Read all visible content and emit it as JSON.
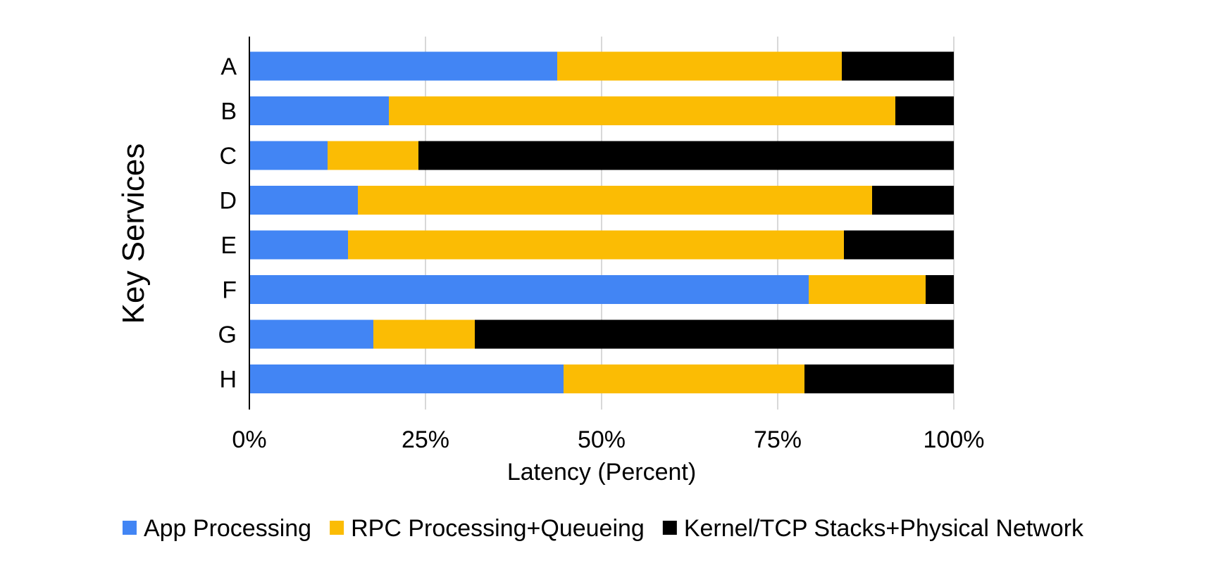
{
  "chart_data": {
    "type": "bar",
    "orientation": "horizontal",
    "stacked": true,
    "categories": [
      "A",
      "B",
      "C",
      "D",
      "E",
      "F",
      "G",
      "H"
    ],
    "series": [
      {
        "name": "App Processing",
        "color": "#4285F4",
        "values": [
          43.7,
          19.8,
          11.1,
          15.4,
          14.0,
          79.4,
          17.6,
          44.6
        ]
      },
      {
        "name": "RPC Processing+Queueing",
        "color": "#FBBC04",
        "values": [
          40.4,
          71.9,
          12.9,
          73.0,
          70.4,
          16.6,
          14.4,
          34.2
        ]
      },
      {
        "name": "Kernel/TCP Stacks+Physical Network",
        "color": "#000000",
        "values": [
          15.9,
          8.3,
          76.0,
          11.6,
          15.6,
          4.0,
          68.0,
          21.2
        ]
      }
    ],
    "xlim": [
      0,
      100
    ],
    "xticks": [
      "0%",
      "25%",
      "50%",
      "75%",
      "100%"
    ],
    "xlabel": "Latency (Percent)",
    "ylabel": "Key Services",
    "grid": true,
    "legend": "bottom"
  }
}
